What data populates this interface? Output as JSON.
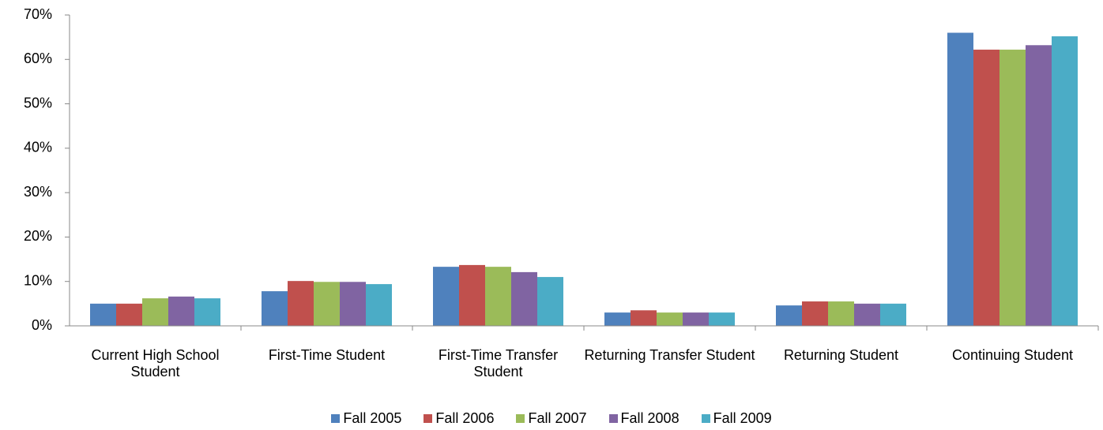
{
  "chart_data": {
    "type": "bar",
    "categories": [
      "Current High School Student",
      "First-Time Student",
      "First-Time Transfer Student",
      "Returning Transfer Student",
      "Returning Student",
      "Continuing Student"
    ],
    "series": [
      {
        "name": "Fall 2005",
        "color": "#4f81bd",
        "values": [
          5.0,
          7.8,
          13.3,
          3.0,
          4.6,
          66.0
        ]
      },
      {
        "name": "Fall 2006",
        "color": "#c0504d",
        "values": [
          5.0,
          10.1,
          13.7,
          3.5,
          5.5,
          62.2
        ]
      },
      {
        "name": "Fall 2007",
        "color": "#9bbb59",
        "values": [
          6.2,
          9.9,
          13.3,
          3.0,
          5.5,
          62.2
        ]
      },
      {
        "name": "Fall 2008",
        "color": "#8064a2",
        "values": [
          6.6,
          9.9,
          12.1,
          3.0,
          5.0,
          63.2
        ]
      },
      {
        "name": "Fall 2009",
        "color": "#4bacc6",
        "values": [
          6.2,
          9.4,
          11.0,
          3.0,
          5.0,
          65.2
        ]
      }
    ],
    "ylim": [
      0,
      70
    ],
    "yticks": [
      {
        "value": 0,
        "label": "0%"
      },
      {
        "value": 10,
        "label": "10%"
      },
      {
        "value": 20,
        "label": "20%"
      },
      {
        "value": 30,
        "label": "30%"
      },
      {
        "value": 40,
        "label": "40%"
      },
      {
        "value": 50,
        "label": "50%"
      },
      {
        "value": 60,
        "label": "60%"
      },
      {
        "value": 70,
        "label": "70%"
      }
    ],
    "grid": false,
    "legend": "bottom"
  }
}
